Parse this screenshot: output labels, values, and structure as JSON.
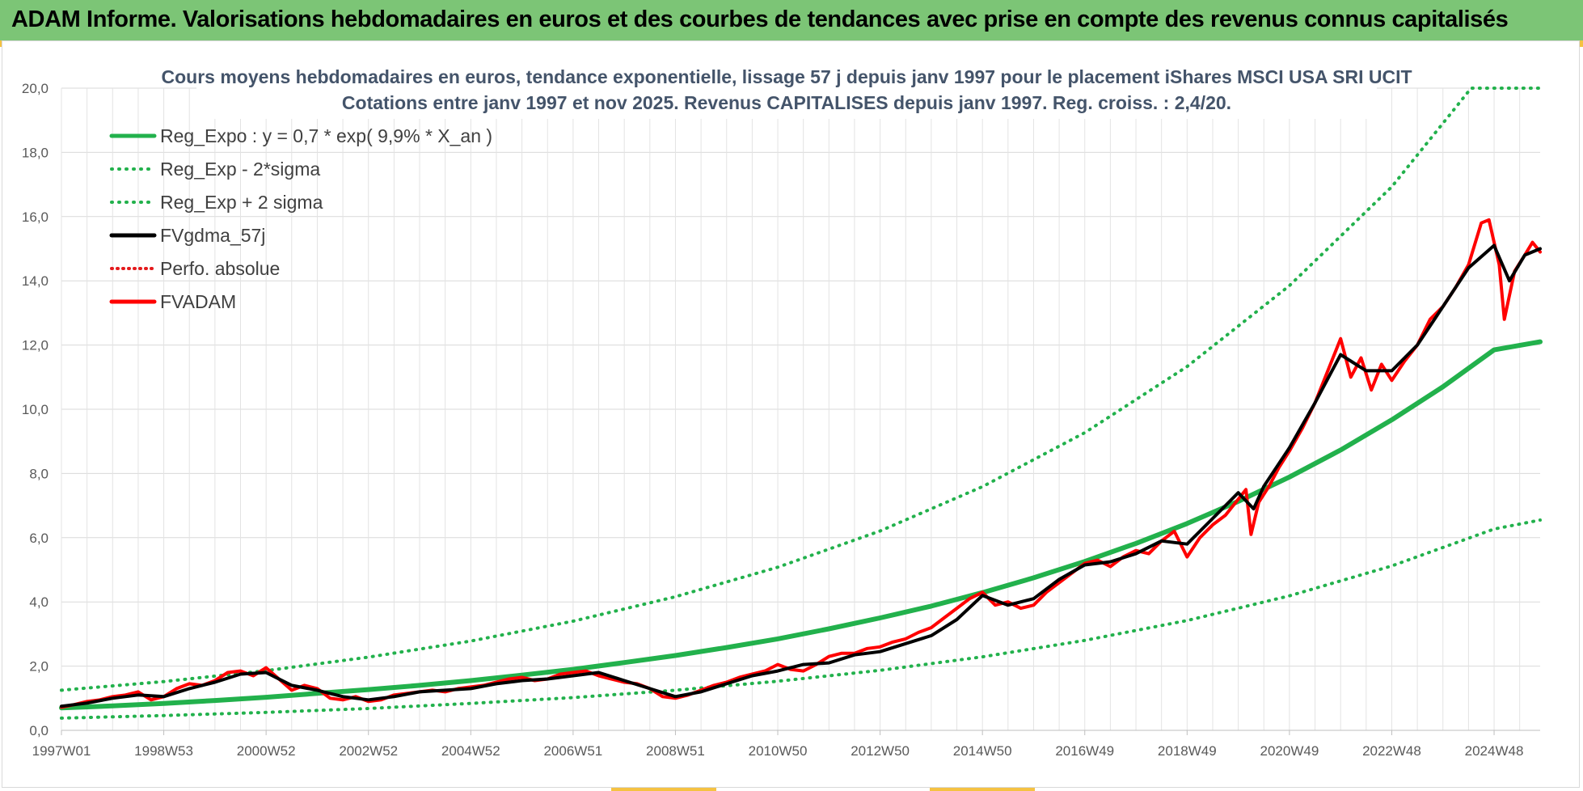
{
  "banner": {
    "title": "ADAM Informe. Valorisations hebdomadaires en euros et des courbes de tendances avec prise en compte des revenus connus capitalisés",
    "color": "#7cc576"
  },
  "chart_data": {
    "type": "line",
    "title_line1": "Cours moyens hebdomadaires en euros, tendance exponentielle, lissage 57 j depuis janv 1997 pour le placement iShares MSCI USA SRI UCIT",
    "title_line2": "Cotations entre janv 1997 et nov 2025. Revenus CAPITALISES depuis janv 1997. Reg. croiss. : 2,4/20.",
    "xlabel": "",
    "ylabel": "",
    "ylim": [
      0,
      20
    ],
    "xlim": [
      1997.0,
      2025.9
    ],
    "grid": true,
    "legend_position": "top-left",
    "y_ticks": [
      "0,0",
      "2,0",
      "4,0",
      "6,0",
      "8,0",
      "10,0",
      "12,0",
      "14,0",
      "16,0",
      "18,0",
      "20,0"
    ],
    "x_ticks": [
      {
        "label": "1997W01",
        "x": 1997.0
      },
      {
        "label": "1998W53",
        "x": 1999.0
      },
      {
        "label": "2000W52",
        "x": 2001.0
      },
      {
        "label": "2002W52",
        "x": 2003.0
      },
      {
        "label": "2004W52",
        "x": 2005.0
      },
      {
        "label": "2006W51",
        "x": 2007.0
      },
      {
        "label": "2008W51",
        "x": 2009.0
      },
      {
        "label": "2010W50",
        "x": 2011.0
      },
      {
        "label": "2012W50",
        "x": 2013.0
      },
      {
        "label": "2014W50",
        "x": 2015.0
      },
      {
        "label": "2016W49",
        "x": 2017.0
      },
      {
        "label": "2018W49",
        "x": 2019.0
      },
      {
        "label": "2020W49",
        "x": 2021.0
      },
      {
        "label": "2022W48",
        "x": 2023.0
      },
      {
        "label": "2024W48",
        "x": 2025.0
      }
    ],
    "series": [
      {
        "name": "Reg_Expo : y = 0,7 * exp( 9,9% *  X_an )",
        "color": "#22b14c",
        "style": "solid",
        "width": 6,
        "points": [
          [
            1997,
            0.7
          ],
          [
            1998,
            0.76
          ],
          [
            1999,
            0.84
          ],
          [
            2000,
            0.93
          ],
          [
            2001,
            1.03
          ],
          [
            2002,
            1.15
          ],
          [
            2003,
            1.27
          ],
          [
            2004,
            1.4
          ],
          [
            2005,
            1.55
          ],
          [
            2006,
            1.72
          ],
          [
            2007,
            1.9
          ],
          [
            2008,
            2.11
          ],
          [
            2009,
            2.33
          ],
          [
            2010,
            2.58
          ],
          [
            2011,
            2.85
          ],
          [
            2012,
            3.16
          ],
          [
            2013,
            3.5
          ],
          [
            2014,
            3.87
          ],
          [
            2015,
            4.29
          ],
          [
            2016,
            4.75
          ],
          [
            2017,
            5.26
          ],
          [
            2018,
            5.82
          ],
          [
            2019,
            6.44
          ],
          [
            2020,
            7.13
          ],
          [
            2021,
            7.89
          ],
          [
            2022,
            8.73
          ],
          [
            2023,
            9.67
          ],
          [
            2024,
            10.7
          ],
          [
            2025,
            11.85
          ],
          [
            2025.9,
            12.1
          ]
        ]
      },
      {
        "name": "Reg_Exp - 2*sigma",
        "color": "#22b14c",
        "style": "dotted",
        "width": 4,
        "points": [
          [
            1997,
            0.38
          ],
          [
            1999,
            0.46
          ],
          [
            2001,
            0.56
          ],
          [
            2003,
            0.68
          ],
          [
            2005,
            0.84
          ],
          [
            2007,
            1.02
          ],
          [
            2009,
            1.25
          ],
          [
            2011,
            1.53
          ],
          [
            2013,
            1.87
          ],
          [
            2015,
            2.29
          ],
          [
            2017,
            2.8
          ],
          [
            2019,
            3.42
          ],
          [
            2021,
            4.19
          ],
          [
            2023,
            5.12
          ],
          [
            2025,
            6.27
          ],
          [
            2025.9,
            6.55
          ]
        ]
      },
      {
        "name": "Reg_Exp + 2 sigma",
        "color": "#22b14c",
        "style": "dotted",
        "width": 4,
        "points": [
          [
            1997,
            1.25
          ],
          [
            1999,
            1.52
          ],
          [
            2001,
            1.86
          ],
          [
            2003,
            2.28
          ],
          [
            2005,
            2.78
          ],
          [
            2007,
            3.4
          ],
          [
            2009,
            4.16
          ],
          [
            2011,
            5.08
          ],
          [
            2013,
            6.21
          ],
          [
            2015,
            7.59
          ],
          [
            2017,
            9.27
          ],
          [
            2019,
            11.33
          ],
          [
            2021,
            13.85
          ],
          [
            2023,
            16.93
          ],
          [
            2024.3,
            19.5
          ],
          [
            2024.55,
            20.0
          ],
          [
            2025.9,
            20.0
          ]
        ]
      },
      {
        "name": "FVgdma_57j",
        "color": "#000000",
        "style": "solid",
        "width": 4,
        "points": [
          [
            1997,
            0.75
          ],
          [
            1997.5,
            0.85
          ],
          [
            1998,
            1.0
          ],
          [
            1998.5,
            1.1
          ],
          [
            1999,
            1.05
          ],
          [
            1999.5,
            1.3
          ],
          [
            2000,
            1.5
          ],
          [
            2000.5,
            1.75
          ],
          [
            2001,
            1.8
          ],
          [
            2001.5,
            1.4
          ],
          [
            2002,
            1.25
          ],
          [
            2002.5,
            1.05
          ],
          [
            2003,
            0.95
          ],
          [
            2003.5,
            1.05
          ],
          [
            2004,
            1.2
          ],
          [
            2004.5,
            1.25
          ],
          [
            2005,
            1.3
          ],
          [
            2005.5,
            1.45
          ],
          [
            2006,
            1.55
          ],
          [
            2006.5,
            1.6
          ],
          [
            2007,
            1.7
          ],
          [
            2007.5,
            1.8
          ],
          [
            2008,
            1.55
          ],
          [
            2008.5,
            1.3
          ],
          [
            2009,
            1.05
          ],
          [
            2009.5,
            1.2
          ],
          [
            2010,
            1.45
          ],
          [
            2010.5,
            1.7
          ],
          [
            2011,
            1.85
          ],
          [
            2011.5,
            2.05
          ],
          [
            2012,
            2.1
          ],
          [
            2012.5,
            2.35
          ],
          [
            2013,
            2.45
          ],
          [
            2013.5,
            2.7
          ],
          [
            2014,
            2.95
          ],
          [
            2014.5,
            3.45
          ],
          [
            2015,
            4.2
          ],
          [
            2015.5,
            3.9
          ],
          [
            2016,
            4.1
          ],
          [
            2016.5,
            4.7
          ],
          [
            2017,
            5.15
          ],
          [
            2017.5,
            5.25
          ],
          [
            2018,
            5.5
          ],
          [
            2018.5,
            5.9
          ],
          [
            2019,
            5.8
          ],
          [
            2019.5,
            6.6
          ],
          [
            2020,
            7.4
          ],
          [
            2020.3,
            6.9
          ],
          [
            2020.5,
            7.6
          ],
          [
            2021,
            8.8
          ],
          [
            2021.5,
            10.2
          ],
          [
            2022,
            11.7
          ],
          [
            2022.5,
            11.2
          ],
          [
            2023,
            11.2
          ],
          [
            2023.5,
            12.0
          ],
          [
            2024,
            13.2
          ],
          [
            2024.5,
            14.4
          ],
          [
            2025,
            15.1
          ],
          [
            2025.3,
            14.0
          ],
          [
            2025.6,
            14.8
          ],
          [
            2025.9,
            15.0
          ]
        ]
      },
      {
        "name": "Perfo. absolue",
        "color": "#e41a1c",
        "style": "dotted",
        "width": 3,
        "points": []
      },
      {
        "name": "FVADAM",
        "color": "#ff0000",
        "style": "solid",
        "width": 4,
        "points": [
          [
            1997,
            0.72
          ],
          [
            1997.25,
            0.8
          ],
          [
            1997.5,
            0.9
          ],
          [
            1997.75,
            0.95
          ],
          [
            1998,
            1.05
          ],
          [
            1998.25,
            1.1
          ],
          [
            1998.5,
            1.2
          ],
          [
            1998.75,
            0.95
          ],
          [
            1999,
            1.05
          ],
          [
            1999.25,
            1.3
          ],
          [
            1999.5,
            1.45
          ],
          [
            1999.75,
            1.4
          ],
          [
            2000,
            1.55
          ],
          [
            2000.25,
            1.8
          ],
          [
            2000.5,
            1.85
          ],
          [
            2000.75,
            1.7
          ],
          [
            2001,
            1.95
          ],
          [
            2001.25,
            1.6
          ],
          [
            2001.5,
            1.25
          ],
          [
            2001.75,
            1.4
          ],
          [
            2002,
            1.3
          ],
          [
            2002.25,
            1.0
          ],
          [
            2002.5,
            0.95
          ],
          [
            2002.75,
            1.05
          ],
          [
            2003,
            0.9
          ],
          [
            2003.25,
            0.95
          ],
          [
            2003.5,
            1.1
          ],
          [
            2003.75,
            1.15
          ],
          [
            2004,
            1.2
          ],
          [
            2004.25,
            1.25
          ],
          [
            2004.5,
            1.2
          ],
          [
            2004.75,
            1.3
          ],
          [
            2005,
            1.35
          ],
          [
            2005.25,
            1.4
          ],
          [
            2005.5,
            1.5
          ],
          [
            2005.75,
            1.6
          ],
          [
            2006,
            1.65
          ],
          [
            2006.25,
            1.55
          ],
          [
            2006.5,
            1.6
          ],
          [
            2006.75,
            1.75
          ],
          [
            2007,
            1.8
          ],
          [
            2007.25,
            1.85
          ],
          [
            2007.5,
            1.7
          ],
          [
            2007.75,
            1.6
          ],
          [
            2008,
            1.5
          ],
          [
            2008.25,
            1.45
          ],
          [
            2008.5,
            1.3
          ],
          [
            2008.75,
            1.05
          ],
          [
            2009,
            1.0
          ],
          [
            2009.25,
            1.1
          ],
          [
            2009.5,
            1.25
          ],
          [
            2009.75,
            1.4
          ],
          [
            2010,
            1.5
          ],
          [
            2010.25,
            1.65
          ],
          [
            2010.5,
            1.75
          ],
          [
            2010.75,
            1.85
          ],
          [
            2011,
            2.05
          ],
          [
            2011.25,
            1.9
          ],
          [
            2011.5,
            1.85
          ],
          [
            2011.75,
            2.05
          ],
          [
            2012,
            2.3
          ],
          [
            2012.25,
            2.4
          ],
          [
            2012.5,
            2.4
          ],
          [
            2012.75,
            2.55
          ],
          [
            2013,
            2.6
          ],
          [
            2013.25,
            2.75
          ],
          [
            2013.5,
            2.85
          ],
          [
            2013.75,
            3.05
          ],
          [
            2014,
            3.2
          ],
          [
            2014.25,
            3.5
          ],
          [
            2014.5,
            3.8
          ],
          [
            2014.75,
            4.1
          ],
          [
            2015,
            4.3
          ],
          [
            2015.25,
            3.9
          ],
          [
            2015.5,
            4.0
          ],
          [
            2015.75,
            3.8
          ],
          [
            2016,
            3.9
          ],
          [
            2016.25,
            4.3
          ],
          [
            2016.5,
            4.6
          ],
          [
            2016.75,
            4.9
          ],
          [
            2017,
            5.2
          ],
          [
            2017.25,
            5.3
          ],
          [
            2017.5,
            5.1
          ],
          [
            2017.75,
            5.4
          ],
          [
            2018,
            5.6
          ],
          [
            2018.25,
            5.5
          ],
          [
            2018.5,
            5.9
          ],
          [
            2018.75,
            6.2
          ],
          [
            2019,
            5.4
          ],
          [
            2019.25,
            6.0
          ],
          [
            2019.5,
            6.4
          ],
          [
            2019.75,
            6.7
          ],
          [
            2020,
            7.2
          ],
          [
            2020.15,
            7.5
          ],
          [
            2020.25,
            6.1
          ],
          [
            2020.4,
            7.1
          ],
          [
            2020.6,
            7.6
          ],
          [
            2020.8,
            8.2
          ],
          [
            2021,
            8.7
          ],
          [
            2021.25,
            9.4
          ],
          [
            2021.5,
            10.2
          ],
          [
            2021.75,
            11.2
          ],
          [
            2022,
            12.2
          ],
          [
            2022.2,
            11.0
          ],
          [
            2022.4,
            11.6
          ],
          [
            2022.6,
            10.6
          ],
          [
            2022.8,
            11.4
          ],
          [
            2023,
            10.9
          ],
          [
            2023.25,
            11.5
          ],
          [
            2023.5,
            12.0
          ],
          [
            2023.75,
            12.8
          ],
          [
            2024,
            13.2
          ],
          [
            2024.25,
            13.8
          ],
          [
            2024.5,
            14.5
          ],
          [
            2024.75,
            15.8
          ],
          [
            2024.9,
            15.9
          ],
          [
            2025.1,
            14.5
          ],
          [
            2025.2,
            12.8
          ],
          [
            2025.4,
            14.3
          ],
          [
            2025.6,
            14.8
          ],
          [
            2025.75,
            15.2
          ],
          [
            2025.9,
            14.9
          ]
        ]
      }
    ]
  }
}
